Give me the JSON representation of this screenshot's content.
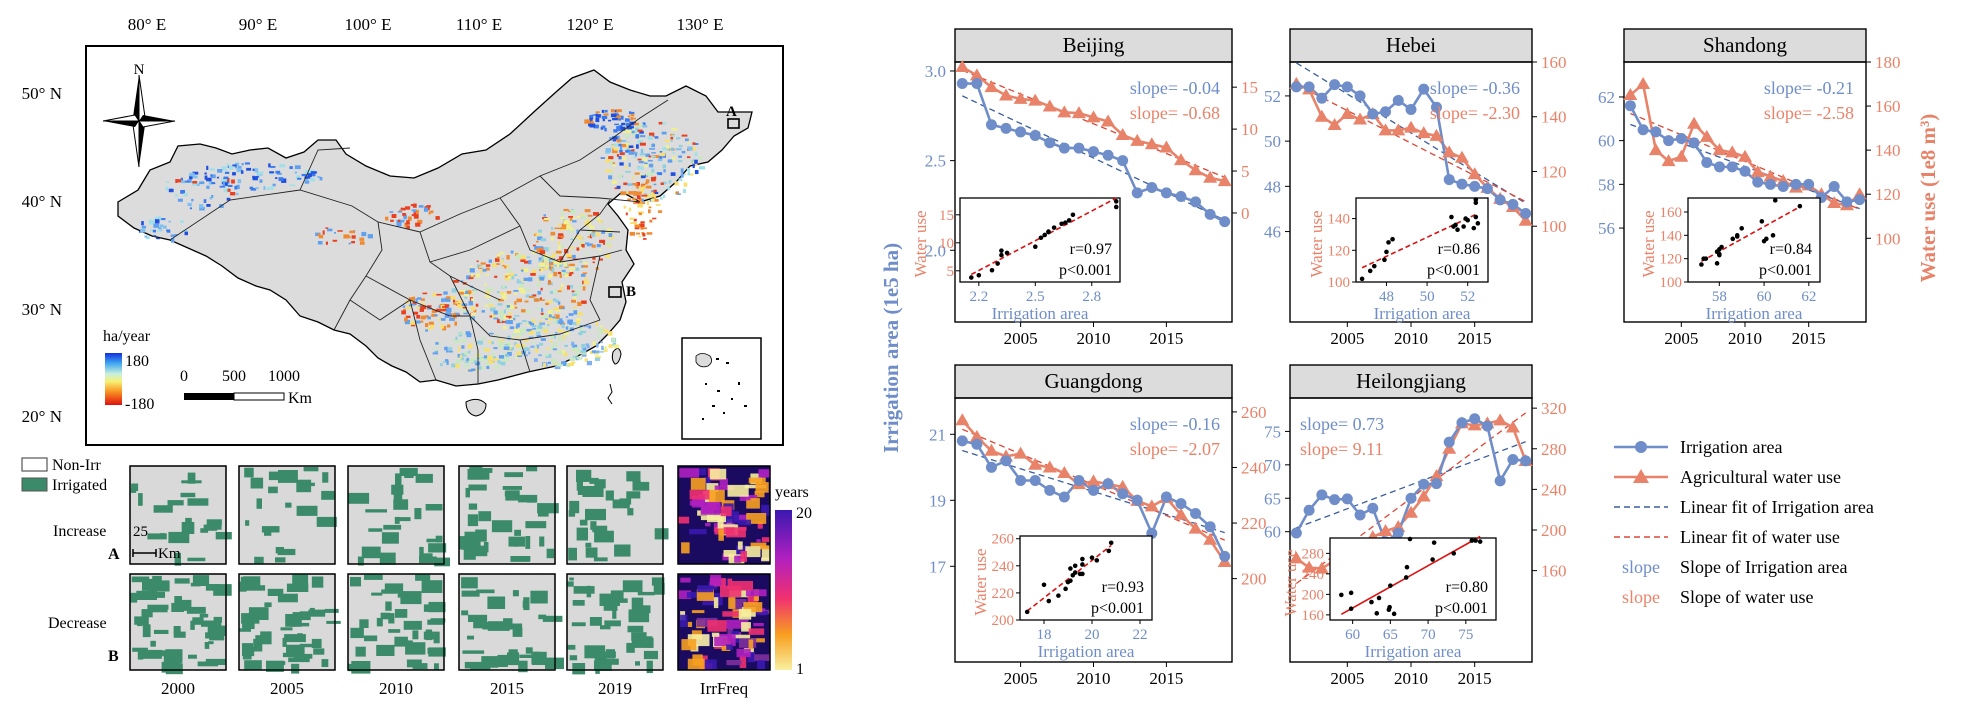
{
  "map": {
    "lon_ticks": [
      "80° E",
      "90° E",
      "100° E",
      "110° E",
      "120° E",
      "130° E"
    ],
    "lat_ticks": [
      "50° N",
      "40° N",
      "30° N",
      "20° N"
    ],
    "north_label": "N",
    "site_a": "A",
    "site_b": "B",
    "legend": {
      "title": "ha/year",
      "max": "180",
      "min": "-180"
    },
    "scale": {
      "ticks": [
        "0",
        "500",
        "1000"
      ],
      "unit": "Km"
    },
    "colors": {
      "land": "#dcdcdc",
      "increase": "#3a6ee0",
      "decrease": "#e03020",
      "stable": "#e8d66a"
    }
  },
  "strips": {
    "legend": [
      "Non-Irr",
      "Irrigated"
    ],
    "row_labels": [
      {
        "name": "Increase",
        "letter": "A"
      },
      {
        "name": "Decrease",
        "letter": "B"
      }
    ],
    "scalebar": {
      "value": "25",
      "unit": "Km"
    },
    "columns": [
      "2000",
      "2005",
      "2010",
      "2015",
      "2019",
      "IrrFreq"
    ],
    "freq_legend": {
      "title": "years",
      "max": "20",
      "min": "1"
    },
    "colors": {
      "irrigated": "#3b8b6b",
      "nonirr": "#d9d9d9"
    }
  },
  "chart_data": [
    {
      "type": "line",
      "title": "Beijing",
      "x": [
        2001,
        2002,
        2003,
        2004,
        2005,
        2006,
        2007,
        2008,
        2009,
        2010,
        2011,
        2012,
        2013,
        2014,
        2015,
        2016,
        2017,
        2018,
        2019
      ],
      "series": [
        {
          "name": "Irrigation area",
          "axis": "left",
          "values": [
            2.93,
            2.93,
            2.7,
            2.68,
            2.66,
            2.64,
            2.6,
            2.57,
            2.57,
            2.55,
            2.53,
            2.5,
            2.32,
            2.35,
            2.32,
            2.3,
            2.27,
            2.2,
            2.16
          ]
        },
        {
          "name": "Agricultural water use",
          "axis": "right",
          "values": [
            17.4,
            16.4,
            15.0,
            14.0,
            13.6,
            13.4,
            12.7,
            12.0,
            11.9,
            11.4,
            10.9,
            9.3,
            8.6,
            8.2,
            7.8,
            6.3,
            5.1,
            4.2,
            3.8
          ]
        }
      ],
      "ylim_left": [
        1.6,
        3.05
      ],
      "yticks_left": [
        "2.0",
        "2.5",
        "3.0"
      ],
      "ylim_right": [
        -13,
        18
      ],
      "yticks_right": [
        "0",
        "5",
        "10",
        "15"
      ],
      "slopes": [
        "slope= -0.04",
        "slope= -0.68"
      ],
      "inset": {
        "xlabel": "Irrigation area",
        "ylabel": "Water use",
        "xticks": [
          "2.2",
          "2.5",
          "2.8"
        ],
        "yticks": [
          "5",
          "10",
          "15"
        ],
        "xlim": [
          2.1,
          2.95
        ],
        "ylim": [
          3,
          18
        ],
        "r": "r=0.97",
        "p": "p<0.001"
      }
    },
    {
      "type": "line",
      "title": "Hebei",
      "x": [
        2001,
        2002,
        2003,
        2004,
        2005,
        2006,
        2007,
        2008,
        2009,
        2010,
        2011,
        2012,
        2013,
        2014,
        2015,
        2016,
        2017,
        2018,
        2019
      ],
      "series": [
        {
          "name": "Irrigation area",
          "axis": "left",
          "values": [
            52.4,
            52.4,
            51.9,
            52.5,
            52.4,
            52.0,
            51.2,
            51.3,
            51.8,
            51.4,
            52.3,
            51.5,
            48.3,
            48.1,
            48.0,
            47.9,
            47.4,
            47.2,
            46.8
          ]
        },
        {
          "name": "Agricultural water use",
          "axis": "right",
          "values": [
            152,
            150,
            140,
            137,
            141,
            139,
            141,
            135,
            135,
            136,
            134,
            133,
            127,
            125,
            119,
            114,
            110,
            107,
            102
          ]
        }
      ],
      "ylim_left": [
        42,
        53.5
      ],
      "yticks_left": [
        "46",
        "48",
        "50",
        "52"
      ],
      "ylim_right": [
        65,
        160
      ],
      "yticks_right": [
        "100",
        "120",
        "140",
        "160"
      ],
      "slopes": [
        "slope= -0.36",
        "slope= -2.30"
      ],
      "inset": {
        "xlabel": "Irrigation area",
        "ylabel": "Water use",
        "xticks": [
          "48",
          "50",
          "52"
        ],
        "yticks": [
          "100",
          "120",
          "140"
        ],
        "xlim": [
          46.5,
          53
        ],
        "ylim": [
          100,
          153
        ],
        "r": "r=0.86",
        "p": "p<0.001"
      }
    },
    {
      "type": "line",
      "title": "Shandong",
      "x": [
        2001,
        2002,
        2003,
        2004,
        2005,
        2006,
        2007,
        2008,
        2009,
        2010,
        2011,
        2012,
        2013,
        2014,
        2015,
        2016,
        2017,
        2018,
        2019
      ],
      "series": [
        {
          "name": "Irrigation area",
          "axis": "left",
          "values": [
            61.6,
            60.5,
            60.4,
            60.0,
            60.1,
            59.9,
            59.0,
            58.8,
            58.8,
            58.6,
            58.1,
            58.0,
            57.9,
            58.0,
            58.0,
            57.4,
            57.9,
            57.2,
            57.3
          ]
        },
        {
          "name": "Agricultural water use",
          "axis": "right",
          "values": [
            165,
            170,
            140,
            135,
            137,
            152,
            146,
            140,
            139,
            137,
            130,
            128,
            126,
            123,
            124,
            120,
            116,
            115,
            120
          ]
        }
      ],
      "ylim_left": [
        51.7,
        63.6
      ],
      "yticks_left": [
        "56",
        "58",
        "60",
        "62"
      ],
      "ylim_right": [
        62,
        180
      ],
      "yticks_right": [
        "100",
        "120",
        "140",
        "160",
        "180"
      ],
      "slopes": [
        "slope= -0.21",
        "slope= -2.58"
      ],
      "inset": {
        "xlabel": "Irrigation area",
        "ylabel": "Water use",
        "xticks": [
          "58",
          "60",
          "62"
        ],
        "yticks": [
          "100",
          "120",
          "140",
          "160"
        ],
        "xlim": [
          56.6,
          62.5
        ],
        "ylim": [
          100,
          172
        ],
        "r": "r=0.84",
        "p": "p<0.001"
      }
    },
    {
      "type": "line",
      "title": "Guangdong",
      "x": [
        2001,
        2002,
        2003,
        2004,
        2005,
        2006,
        2007,
        2008,
        2009,
        2010,
        2011,
        2012,
        2013,
        2014,
        2015,
        2016,
        2017,
        2018,
        2019
      ],
      "series": [
        {
          "name": "Irrigation area",
          "axis": "left",
          "values": [
            20.8,
            20.7,
            20.0,
            20.2,
            19.6,
            19.6,
            19.3,
            19.1,
            19.6,
            19.3,
            19.5,
            19.2,
            19.0,
            18.0,
            19.1,
            18.9,
            18.6,
            18.2,
            17.3
          ]
        },
        {
          "name": "Agricultural water use",
          "axis": "right",
          "values": [
            257,
            251,
            246,
            244,
            245,
            241,
            240,
            238,
            234,
            235,
            234,
            233,
            228,
            226,
            229,
            223,
            218,
            214,
            206
          ]
        }
      ],
      "ylim_left": [
        14.1,
        22.1
      ],
      "yticks_left": [
        "17",
        "19",
        "21"
      ],
      "ylim_right": [
        170,
        265
      ],
      "yticks_right": [
        "200",
        "220",
        "240",
        "260"
      ],
      "slopes": [
        "slope= -0.16",
        "slope= -2.07"
      ],
      "inset": {
        "xlabel": "Irrigation area",
        "ylabel": "Water use",
        "xticks": [
          "18",
          "20",
          "22"
        ],
        "yticks": [
          "200",
          "220",
          "240",
          "260"
        ],
        "xlim": [
          17,
          22.5
        ],
        "ylim": [
          200,
          262
        ],
        "r": "r=0.93",
        "p": "p<0.001"
      }
    },
    {
      "type": "line",
      "title": "Heilongjiang",
      "x": [
        2001,
        2002,
        2003,
        2004,
        2005,
        2006,
        2007,
        2008,
        2009,
        2010,
        2011,
        2012,
        2013,
        2014,
        2015,
        2016,
        2017,
        2018,
        2019
      ],
      "series": [
        {
          "name": "Irrigation area",
          "axis": "left",
          "values": [
            59.8,
            63.2,
            65.5,
            64.8,
            64.9,
            62.5,
            63.5,
            58.5,
            59.8,
            65.0,
            67.1,
            67.2,
            73.4,
            76.3,
            76.9,
            75.8,
            67.6,
            70.8,
            70.6
          ]
        },
        {
          "name": "Agricultural water use",
          "axis": "right",
          "values": [
            172,
            163,
            162,
            170,
            175,
            185,
            193,
            199,
            203,
            217,
            233,
            253,
            280,
            305,
            303,
            305,
            308,
            301,
            268
          ]
        }
      ],
      "ylim_left": [
        40.5,
        80
      ],
      "yticks_left": [
        "60",
        "65",
        "70",
        "75"
      ],
      "ylim_right": [
        70,
        330
      ],
      "yticks_right": [
        "160",
        "200",
        "240",
        "280",
        "320"
      ],
      "slopes": [
        "slope= 0.73",
        "slope= 9.11"
      ],
      "inset": {
        "xlabel": "Irrigation area",
        "ylabel": "Water use",
        "xticks": [
          "60",
          "65",
          "70",
          "75"
        ],
        "yticks": [
          "160",
          "200",
          "240",
          "280"
        ],
        "xlim": [
          57,
          79
        ],
        "ylim": [
          150,
          310
        ],
        "r": "r=0.80",
        "p": "p<0.001"
      }
    }
  ],
  "shared": {
    "xticks": [
      "2005",
      "2010",
      "2015"
    ],
    "ylabel_left": "Irrigation area (1e5 ha)",
    "ylabel_right": "Water use (1e8 m³)",
    "colors": {
      "area": "#6f8dc8",
      "water": "#e8836a",
      "fit_area": "#3a5e9e",
      "fit_water": "#e04535",
      "inset_fit": "#dd1111"
    },
    "legend": [
      {
        "kind": "line-circle",
        "text": "Irrigation area"
      },
      {
        "kind": "line-triangle",
        "text": "Agricultural water use"
      },
      {
        "kind": "dash-blue",
        "text": "Linear fit of Irrigation area"
      },
      {
        "kind": "dash-orange",
        "text": "Linear fit of water use"
      },
      {
        "kind": "word-blue",
        "sample": "slope",
        "text": "Slope of Irrigation area"
      },
      {
        "kind": "word-orange",
        "sample": "slope",
        "text": "Slope of water use"
      }
    ]
  }
}
